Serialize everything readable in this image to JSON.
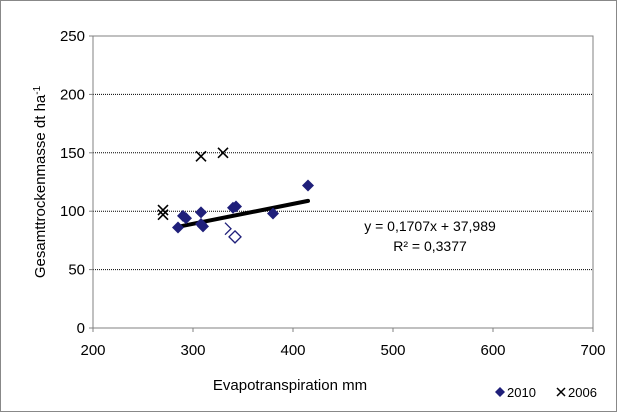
{
  "chart_data": {
    "type": "scatter",
    "title": "",
    "xlabel": "Evapotranspiration mm",
    "ylabel_base": "Gesamttrockenmasse dt ha",
    "ylabel_sup": "-1",
    "xlim": [
      200,
      700
    ],
    "ylim": [
      0,
      250
    ],
    "x_ticks": [
      200,
      300,
      400,
      500,
      600,
      700
    ],
    "y_ticks": [
      0,
      50,
      100,
      150,
      200,
      250
    ],
    "grid": "horizontal",
    "legend_position": "bottom-right",
    "series": [
      {
        "name": "2010",
        "marker": "diamond-filled",
        "color": "#1f1f7a",
        "points": [
          [
            285,
            86
          ],
          [
            290,
            96
          ],
          [
            293,
            94
          ],
          [
            308,
            99
          ],
          [
            308,
            89
          ],
          [
            310,
            87
          ],
          [
            340,
            103
          ],
          [
            343,
            104
          ],
          [
            380,
            98
          ],
          [
            415,
            122
          ]
        ]
      },
      {
        "name": "2006",
        "marker": "x",
        "color": "#000000",
        "points": [
          [
            270,
            101
          ],
          [
            270,
            97
          ],
          [
            308,
            147
          ],
          [
            330,
            150
          ]
        ]
      },
      {
        "name": "",
        "marker": "diamond-open",
        "color": "#1f1f7a",
        "points": [
          [
            342,
            78
          ]
        ]
      },
      {
        "name": "",
        "marker": "half-open",
        "color": "#1f1f7a",
        "points": [
          [
            338,
            85
          ]
        ]
      }
    ],
    "trendline": {
      "x_range": [
        285,
        415
      ],
      "slope": 0.1707,
      "intercept": 37.989,
      "color": "#000000",
      "equation_label": "y = 0,1707x + 37,989",
      "r2_label": "R² = 0,3377"
    }
  }
}
